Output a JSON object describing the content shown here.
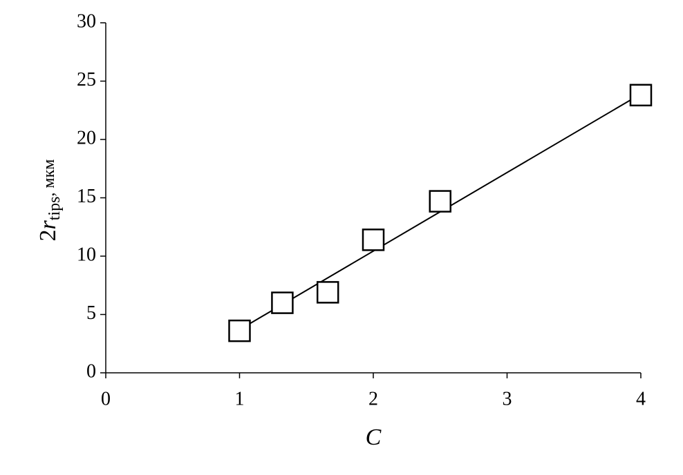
{
  "chart_data": {
    "type": "scatter",
    "xlabel": "C",
    "ylabel": [
      "2",
      "r",
      "tips",
      ", мкм"
    ],
    "series": [
      {
        "color": "#000000",
        "marker": "square",
        "x": [
          1,
          1.32,
          1.66,
          2,
          2.5,
          4
        ],
        "values": [
          3.6,
          6.0,
          6.9,
          11.4,
          14.7,
          23.8
        ]
      },
      {
        "color": "#000000",
        "marker": "line",
        "x": [
          1,
          4
        ],
        "values": [
          3.7,
          23.9
        ]
      }
    ],
    "xlim": [
      0,
      4
    ],
    "xticks": [
      0,
      1,
      2,
      3,
      4
    ],
    "ylim": [
      0,
      30
    ],
    "yticks": [
      0,
      5,
      10,
      15,
      20,
      25,
      30
    ],
    "grid": false
  }
}
